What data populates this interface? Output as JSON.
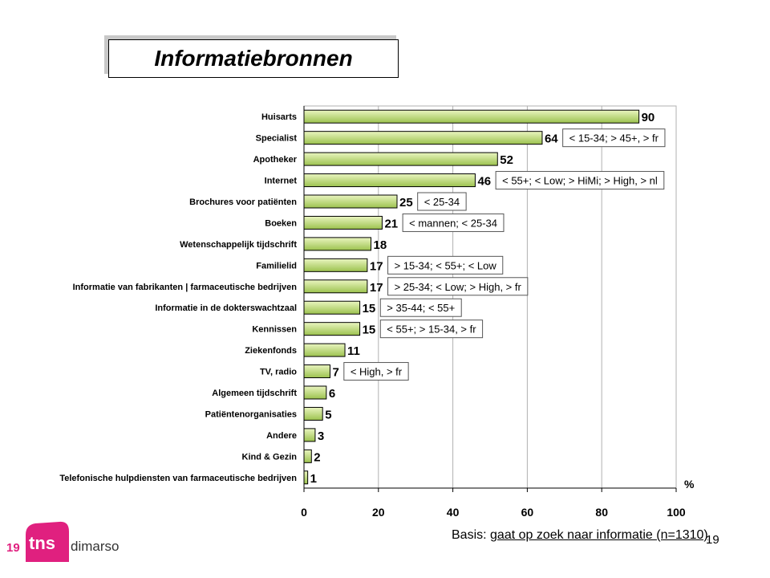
{
  "title": "Informatiebronnen",
  "colors": {
    "bar_fill_top": "#eaf5c0",
    "bar_fill_bottom": "#9cc24e",
    "bar_stroke": "#000000",
    "brand_pink": "#e0207f",
    "grid": "#b0b0b0"
  },
  "chart_data": {
    "type": "bar",
    "orientation": "horizontal",
    "categories": [
      "Huisarts",
      "Specialist",
      "Apotheker",
      "Internet",
      "Brochures voor patiënten",
      "Boeken",
      "Wetenschappelijk tijdschrift",
      "Familielid",
      "Informatie van fabrikanten | farmaceutische bedrijven",
      "Informatie in de dokterswachtzaal",
      "Kennissen",
      "Ziekenfonds",
      "TV, radio",
      "Algemeen tijdschrift",
      "Patiëntenorganisaties",
      "Andere",
      "Kind & Gezin",
      "Telefonische hulpdiensten van farmaceutische bedrijven"
    ],
    "values": [
      90,
      64,
      52,
      46,
      25,
      21,
      18,
      17,
      17,
      15,
      15,
      11,
      7,
      6,
      5,
      3,
      2,
      1
    ],
    "annotations": [
      {
        "category_index": 1,
        "text": "< 15-34; > 45+, > fr"
      },
      {
        "category_index": 3,
        "text": "< 55+; < Low; > HiMi; > High, > nl"
      },
      {
        "category_index": 4,
        "text": "< 25-34"
      },
      {
        "category_index": 5,
        "text": "< mannen; < 25-34"
      },
      {
        "category_index": 7,
        "text": "> 15-34; < 55+; < Low"
      },
      {
        "category_index": 8,
        "text": "> 25-34; < Low; > High, > fr"
      },
      {
        "category_index": 9,
        "text": "> 35-44; < 55+"
      },
      {
        "category_index": 10,
        "text": "< 55+; > 15-34, > fr"
      },
      {
        "category_index": 12,
        "text": "< High, > fr"
      }
    ],
    "xlim": [
      0,
      100
    ],
    "xticks": [
      0,
      20,
      40,
      60,
      80,
      100
    ],
    "unit_label": "%",
    "grid": true,
    "legend": "none"
  },
  "footer": {
    "basis_prefix": "Basis: ",
    "basis_underlined": "gaat op zoek naar informatie (n=1310)"
  },
  "page_number_left": "19",
  "page_number_right": "19",
  "logo": {
    "tns": "tns",
    "dimarso": "dimarso",
    "icon": "tns-dimarso-logo"
  }
}
